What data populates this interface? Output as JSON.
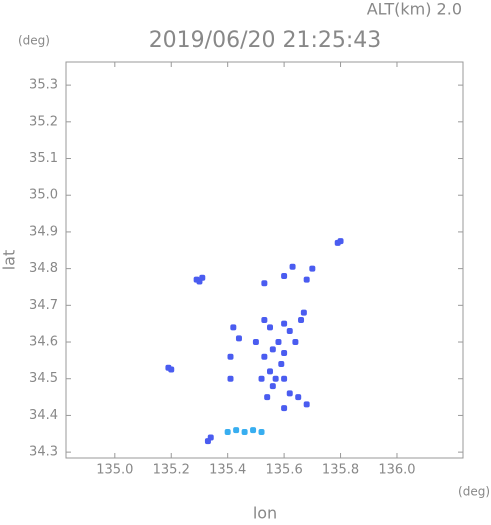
{
  "chart_data": {
    "type": "scatter",
    "title": "2019/06/20 21:25:43",
    "annotations": [
      "ALT(km) 2.0",
      "(deg)",
      "(deg)"
    ],
    "xlabel": "lon",
    "ylabel": "lat",
    "xlim": [
      134.827,
      136.234
    ],
    "ylim": [
      34.284,
      35.363
    ],
    "xticks": [
      {
        "value": 135,
        "label": "135.0"
      },
      135.2,
      135.4,
      135.6,
      135.8,
      {
        "value": 136,
        "label": "136.0"
      }
    ],
    "yticks": [
      34.3,
      34.4,
      34.5,
      34.6,
      34.7,
      34.8,
      34.9,
      {
        "value": 35,
        "label": "35.0"
      },
      35.1,
      35.2,
      35.3
    ],
    "series": [
      {
        "color": "#4a5cf0",
        "x": [
          135.19,
          135.2,
          135.29,
          135.3,
          135.31,
          135.8,
          135.79,
          135.53,
          135.63,
          135.7,
          135.68,
          135.6,
          135.53,
          135.55,
          135.6,
          135.62,
          135.66,
          135.67,
          135.64,
          135.58,
          135.56,
          135.6,
          135.53,
          135.55,
          135.57,
          135.56,
          135.6,
          135.62,
          135.65,
          135.6,
          135.68,
          135.59,
          135.42,
          135.44,
          135.41,
          135.41,
          135.5,
          135.52,
          135.54,
          135.33,
          135.34
        ],
        "values": [
          34.53,
          34.525,
          34.77,
          34.765,
          34.775,
          34.875,
          34.87,
          34.76,
          34.805,
          34.8,
          34.77,
          34.78,
          34.66,
          34.64,
          34.65,
          34.63,
          34.66,
          34.68,
          34.6,
          34.6,
          34.58,
          34.57,
          34.56,
          34.52,
          34.5,
          34.48,
          34.5,
          34.46,
          34.45,
          34.42,
          34.43,
          34.54,
          34.64,
          34.61,
          34.5,
          34.56,
          34.6,
          34.5,
          34.45,
          34.33,
          34.34
        ]
      },
      {
        "color": "#38aef0",
        "x": [
          135.4,
          135.43,
          135.46,
          135.49,
          135.52
        ],
        "values": [
          34.355,
          34.36,
          34.355,
          34.36,
          34.355
        ]
      }
    ]
  }
}
